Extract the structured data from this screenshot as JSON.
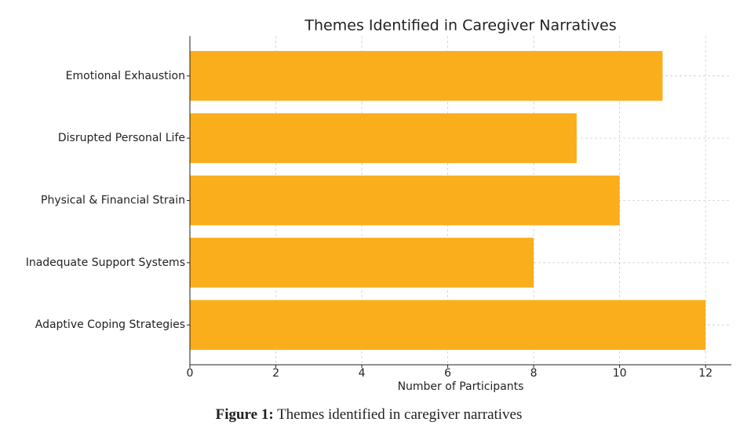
{
  "chart_data": {
    "type": "barh",
    "title": "Themes Identified in Caregiver Narratives",
    "categories": [
      "Emotional Exhaustion",
      "Disrupted Personal Life",
      "Physical & Financial Strain",
      "Inadequate Support Systems",
      "Adaptive Coping Strategies"
    ],
    "values": [
      11,
      9,
      10,
      8,
      12
    ],
    "color": "#faae1c",
    "x_label": "Number of Participants",
    "xlim": [
      0,
      12.6
    ],
    "xticks": [
      0,
      2,
      4,
      6,
      8,
      10,
      12
    ],
    "grid": true
  },
  "caption": {
    "label": "Figure 1:",
    "text": "Themes identified in caregiver narratives"
  }
}
